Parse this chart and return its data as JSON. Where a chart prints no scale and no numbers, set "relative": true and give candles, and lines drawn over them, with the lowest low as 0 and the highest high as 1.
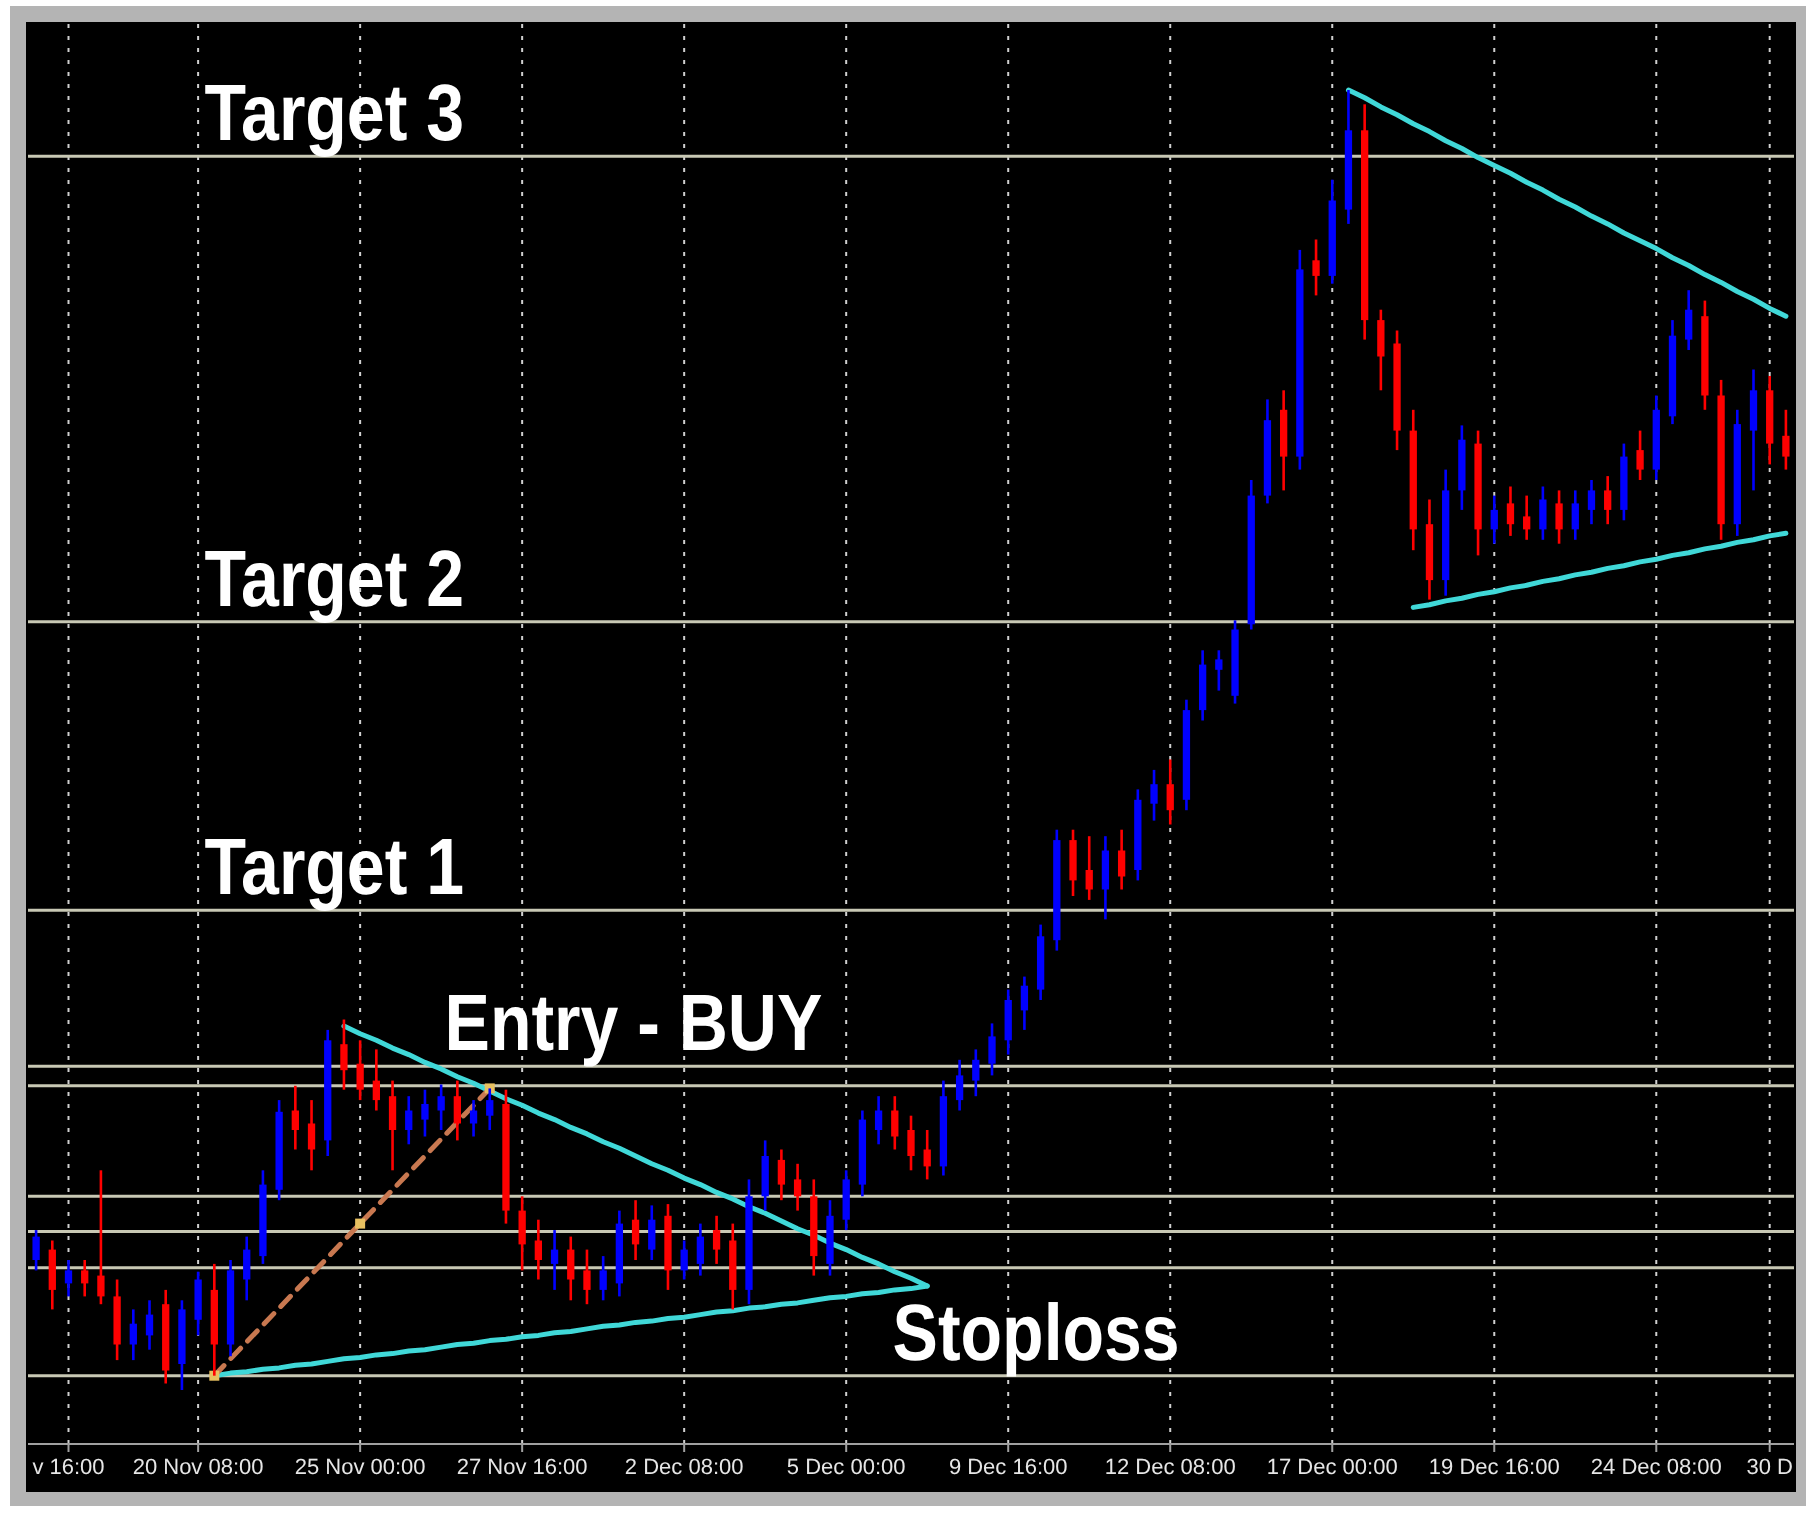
{
  "chart_data": {
    "type": "candlestick",
    "relative": true,
    "grid": "x",
    "categories": [
      null,
      null,
      "v 16:00",
      null,
      null,
      null,
      null,
      null,
      null,
      null,
      "20 Nov 08:00",
      null,
      null,
      null,
      null,
      null,
      null,
      null,
      null,
      null,
      "25 Nov 00:00",
      null,
      null,
      null,
      null,
      null,
      null,
      null,
      null,
      null,
      "27 Nov 16:00",
      null,
      null,
      null,
      null,
      null,
      null,
      null,
      null,
      null,
      "2 Dec 08:00",
      null,
      null,
      null,
      null,
      null,
      null,
      null,
      null,
      null,
      "5 Dec 00:00",
      null,
      null,
      null,
      null,
      null,
      null,
      null,
      null,
      null,
      "9 Dec 16:00",
      null,
      null,
      null,
      null,
      null,
      null,
      null,
      null,
      null,
      "12 Dec 08:00",
      null,
      null,
      null,
      null,
      null,
      null,
      null,
      null,
      null,
      "17 Dec 00:00",
      null,
      null,
      null,
      null,
      null,
      null,
      null,
      null,
      null,
      "19 Dec 16:00",
      null,
      null,
      null,
      null,
      null,
      null,
      null,
      null,
      null,
      "24 Dec 08:00",
      null,
      null,
      null,
      null,
      null,
      null,
      "30 D",
      null
    ],
    "ohlc": [
      [
        0.1,
        0.123,
        0.092,
        0.118
      ],
      [
        0.108,
        0.115,
        0.062,
        0.077
      ],
      [
        0.082,
        0.1,
        0.072,
        0.092
      ],
      [
        0.092,
        0.1,
        0.072,
        0.082
      ],
      [
        0.088,
        0.169,
        0.066,
        0.072
      ],
      [
        0.072,
        0.085,
        0.023,
        0.035
      ],
      [
        0.035,
        0.062,
        0.023,
        0.051
      ],
      [
        0.042,
        0.069,
        0.031,
        0.058
      ],
      [
        0.066,
        0.077,
        0.005,
        0.015
      ],
      [
        0.02,
        0.069,
        0,
        0.062
      ],
      [
        0.054,
        0.091,
        0.042,
        0.085
      ],
      [
        0.077,
        0.097,
        0.011,
        0.035
      ],
      [
        0.035,
        0.1,
        0.026,
        0.092
      ],
      [
        0.085,
        0.118,
        0.069,
        0.108
      ],
      [
        0.103,
        0.169,
        0.097,
        0.158
      ],
      [
        0.154,
        0.223,
        0.146,
        0.214
      ],
      [
        0.215,
        0.234,
        0.185,
        0.2
      ],
      [
        0.205,
        0.223,
        0.169,
        0.185
      ],
      [
        0.192,
        0.277,
        0.18,
        0.269
      ],
      [
        0.266,
        0.285,
        0.231,
        0.246
      ],
      [
        0.251,
        0.269,
        0.223,
        0.231
      ],
      [
        0.238,
        0.262,
        0.215,
        0.223
      ],
      [
        0.226,
        0.238,
        0.169,
        0.2
      ],
      [
        0.2,
        0.226,
        0.189,
        0.215
      ],
      [
        0.208,
        0.231,
        0.195,
        0.22
      ],
      [
        0.215,
        0.235,
        0.2,
        0.226
      ],
      [
        0.226,
        0.238,
        0.192,
        0.205
      ],
      [
        0.205,
        0.223,
        0.195,
        0.215
      ],
      [
        0.211,
        0.232,
        0.2,
        0.223
      ],
      [
        0.22,
        0.231,
        0.128,
        0.138
      ],
      [
        0.138,
        0.149,
        0.092,
        0.112
      ],
      [
        0.115,
        0.131,
        0.085,
        0.1
      ],
      [
        0.097,
        0.123,
        0.077,
        0.108
      ],
      [
        0.108,
        0.118,
        0.069,
        0.085
      ],
      [
        0.092,
        0.108,
        0.066,
        0.077
      ],
      [
        0.077,
        0.103,
        0.069,
        0.092
      ],
      [
        0.082,
        0.138,
        0.072,
        0.128
      ],
      [
        0.131,
        0.146,
        0.1,
        0.112
      ],
      [
        0.108,
        0.142,
        0.1,
        0.131
      ],
      [
        0.134,
        0.143,
        0.077,
        0.092
      ],
      [
        0.092,
        0.115,
        0.085,
        0.108
      ],
      [
        0.097,
        0.128,
        0.088,
        0.118
      ],
      [
        0.123,
        0.134,
        0.097,
        0.108
      ],
      [
        0.115,
        0.128,
        0.062,
        0.077
      ],
      [
        0.077,
        0.162,
        0.066,
        0.149
      ],
      [
        0.149,
        0.192,
        0.138,
        0.18
      ],
      [
        0.177,
        0.185,
        0.146,
        0.158
      ],
      [
        0.162,
        0.174,
        0.138,
        0.149
      ],
      [
        0.149,
        0.162,
        0.088,
        0.103
      ],
      [
        0.097,
        0.146,
        0.088,
        0.134
      ],
      [
        0.131,
        0.169,
        0.123,
        0.162
      ],
      [
        0.158,
        0.215,
        0.149,
        0.208
      ],
      [
        0.2,
        0.226,
        0.189,
        0.215
      ],
      [
        0.215,
        0.226,
        0.185,
        0.195
      ],
      [
        0.2,
        0.211,
        0.169,
        0.18
      ],
      [
        0.185,
        0.2,
        0.162,
        0.172
      ],
      [
        0.172,
        0.238,
        0.165,
        0.226
      ],
      [
        0.223,
        0.254,
        0.215,
        0.242
      ],
      [
        0.238,
        0.262,
        0.226,
        0.254
      ],
      [
        0.251,
        0.282,
        0.242,
        0.272
      ],
      [
        0.269,
        0.308,
        0.258,
        0.3
      ],
      [
        0.292,
        0.318,
        0.277,
        0.311
      ],
      [
        0.308,
        0.358,
        0.3,
        0.349
      ],
      [
        0.346,
        0.431,
        0.338,
        0.423
      ],
      [
        0.423,
        0.431,
        0.38,
        0.392
      ],
      [
        0.4,
        0.426,
        0.377,
        0.385
      ],
      [
        0.385,
        0.426,
        0.362,
        0.415
      ],
      [
        0.415,
        0.431,
        0.385,
        0.395
      ],
      [
        0.4,
        0.462,
        0.392,
        0.454
      ],
      [
        0.451,
        0.477,
        0.438,
        0.466
      ],
      [
        0.466,
        0.485,
        0.435,
        0.446
      ],
      [
        0.454,
        0.531,
        0.446,
        0.523
      ],
      [
        0.523,
        0.569,
        0.515,
        0.558
      ],
      [
        0.554,
        0.569,
        0.538,
        0.562
      ],
      [
        0.534,
        0.592,
        0.528,
        0.585
      ],
      [
        0.589,
        0.7,
        0.585,
        0.688
      ],
      [
        0.688,
        0.762,
        0.682,
        0.746
      ],
      [
        0.754,
        0.769,
        0.692,
        0.718
      ],
      [
        0.718,
        0.877,
        0.708,
        0.862
      ],
      [
        0.869,
        0.885,
        0.842,
        0.857
      ],
      [
        0.857,
        0.931,
        0.851,
        0.915
      ],
      [
        0.908,
        1,
        0.897,
        0.969
      ],
      [
        0.969,
        0.989,
        0.808,
        0.823
      ],
      [
        0.823,
        0.831,
        0.769,
        0.795
      ],
      [
        0.805,
        0.815,
        0.723,
        0.738
      ],
      [
        0.738,
        0.754,
        0.646,
        0.662
      ],
      [
        0.666,
        0.685,
        0.608,
        0.623
      ],
      [
        0.623,
        0.708,
        0.611,
        0.692
      ],
      [
        0.692,
        0.742,
        0.677,
        0.731
      ],
      [
        0.728,
        0.738,
        0.642,
        0.662
      ],
      [
        0.662,
        0.688,
        0.651,
        0.677
      ],
      [
        0.682,
        0.695,
        0.657,
        0.666
      ],
      [
        0.672,
        0.688,
        0.654,
        0.662
      ],
      [
        0.662,
        0.695,
        0.654,
        0.685
      ],
      [
        0.682,
        0.692,
        0.651,
        0.662
      ],
      [
        0.662,
        0.692,
        0.654,
        0.682
      ],
      [
        0.677,
        0.7,
        0.666,
        0.692
      ],
      [
        0.692,
        0.703,
        0.666,
        0.677
      ],
      [
        0.677,
        0.728,
        0.669,
        0.718
      ],
      [
        0.723,
        0.738,
        0.7,
        0.708
      ],
      [
        0.708,
        0.765,
        0.7,
        0.754
      ],
      [
        0.749,
        0.823,
        0.743,
        0.811
      ],
      [
        0.808,
        0.846,
        0.8,
        0.831
      ],
      [
        0.826,
        0.838,
        0.754,
        0.765
      ],
      [
        0.765,
        0.777,
        0.654,
        0.666
      ],
      [
        0.666,
        0.754,
        0.657,
        0.743
      ],
      [
        0.738,
        0.785,
        0.692,
        0.769
      ],
      [
        0.769,
        0.78,
        0.712,
        0.728
      ],
      [
        0.734,
        0.754,
        0.708,
        0.718
      ]
    ],
    "colors": [
      "#0000ff",
      "#ff0000",
      "#0000ff",
      "#ff0000",
      "#ff0000",
      "#ff0000",
      "#0000ff",
      "#0000ff",
      "#ff0000",
      "#0000ff",
      "#0000ff",
      "#ff0000",
      "#0000ff",
      "#0000ff",
      "#0000ff",
      "#0000ff",
      "#ff0000",
      "#ff0000",
      "#0000ff",
      "#ff0000",
      "#ff0000",
      "#ff0000",
      "#ff0000",
      "#0000ff",
      "#0000ff",
      "#0000ff",
      "#ff0000",
      "#0000ff",
      "#0000ff",
      "#ff0000",
      "#ff0000",
      "#ff0000",
      "#0000ff",
      "#ff0000",
      "#ff0000",
      "#0000ff",
      "#0000ff",
      "#ff0000",
      "#0000ff",
      "#ff0000",
      "#0000ff",
      "#0000ff",
      "#ff0000",
      "#ff0000",
      "#0000ff",
      "#0000ff",
      "#ff0000",
      "#ff0000",
      "#ff0000",
      "#0000ff",
      "#0000ff",
      "#0000ff",
      "#0000ff",
      "#ff0000",
      "#ff0000",
      "#ff0000",
      "#0000ff",
      "#0000ff",
      "#0000ff",
      "#0000ff",
      "#0000ff",
      "#0000ff",
      "#0000ff",
      "#0000ff",
      "#ff0000",
      "#ff0000",
      "#0000ff",
      "#ff0000",
      "#0000ff",
      "#0000ff",
      "#ff0000",
      "#0000ff",
      "#0000ff",
      "#0000ff",
      "#0000ff",
      "#0000ff",
      "#0000ff",
      "#ff0000",
      "#0000ff",
      "#ff0000",
      "#0000ff",
      "#0000ff",
      "#ff0000",
      "#ff0000",
      "#ff0000",
      "#ff0000",
      "#ff0000",
      "#0000ff",
      "#0000ff",
      "#ff0000",
      "#0000ff",
      "#ff0000",
      "#ff0000",
      "#0000ff",
      "#ff0000",
      "#0000ff",
      "#0000ff",
      "#ff0000",
      "#0000ff",
      "#ff0000",
      "#0000ff",
      "#0000ff",
      "#0000ff",
      "#ff0000",
      "#ff0000",
      "#0000ff",
      "#0000ff",
      "#ff0000",
      "#ff0000"
    ],
    "series": [
      {
        "type": "line",
        "color": "#40d8d8",
        "values": [
          null,
          null,
          null,
          null,
          null,
          null,
          null,
          null,
          null,
          null,
          null,
          null,
          null,
          null,
          null,
          null,
          null,
          null,
          null,
          0.28,
          0.274,
          0.269,
          0.263,
          0.258,
          0.252,
          0.247,
          0.241,
          0.236,
          0.23,
          0.224,
          0.219,
          0.213,
          0.208,
          0.202,
          0.197,
          0.191,
          0.186,
          0.18,
          0.174,
          0.169,
          0.163,
          0.158,
          0.152,
          0.147,
          0.141,
          0.136,
          0.13,
          0.124,
          0.119,
          0.113,
          0.108,
          0.102,
          0.097,
          0.091,
          0.086,
          0.08,
          null,
          null,
          null,
          null,
          null,
          null,
          null,
          null,
          null,
          null,
          null,
          null,
          null,
          null,
          null,
          null,
          null,
          null,
          null,
          null,
          null,
          null,
          null,
          null,
          null,
          null,
          null,
          null,
          null,
          null,
          null,
          null,
          null,
          null,
          null,
          null,
          null,
          null,
          null,
          null,
          null,
          null,
          null,
          null,
          null,
          null,
          null,
          null,
          null,
          null,
          null,
          null,
          null
        ]
      },
      {
        "type": "line",
        "color": "#40d8d8",
        "values": [
          null,
          null,
          null,
          null,
          null,
          null,
          null,
          null,
          null,
          null,
          null,
          0.011,
          0.013,
          0.014,
          0.016,
          0.017,
          0.019,
          0.02,
          0.022,
          0.024,
          0.025,
          0.027,
          0.028,
          0.03,
          0.031,
          0.033,
          0.035,
          0.036,
          0.038,
          0.039,
          0.041,
          0.042,
          0.044,
          0.045,
          0.047,
          0.049,
          0.05,
          0.052,
          0.053,
          0.055,
          0.056,
          0.058,
          0.06,
          0.061,
          0.063,
          0.064,
          0.066,
          0.067,
          0.069,
          0.071,
          0.072,
          0.074,
          0.075,
          0.077,
          0.078,
          0.08,
          null,
          null,
          null,
          null,
          null,
          null,
          null,
          null,
          null,
          null,
          null,
          null,
          null,
          null,
          null,
          null,
          null,
          null,
          null,
          null,
          null,
          null,
          null,
          null,
          null,
          null,
          null,
          null,
          null,
          null,
          null,
          null,
          null,
          null,
          null,
          null,
          null,
          null,
          null,
          null,
          null,
          null,
          null,
          null,
          null,
          null,
          null,
          null,
          null,
          null,
          null,
          null,
          null
        ]
      },
      {
        "type": "line",
        "color": "#40d8d8",
        "values": [
          null,
          null,
          null,
          null,
          null,
          null,
          null,
          null,
          null,
          null,
          null,
          null,
          null,
          null,
          null,
          null,
          null,
          null,
          null,
          null,
          null,
          null,
          null,
          null,
          null,
          null,
          null,
          null,
          null,
          null,
          null,
          null,
          null,
          null,
          null,
          null,
          null,
          null,
          null,
          null,
          null,
          null,
          null,
          null,
          null,
          null,
          null,
          null,
          null,
          null,
          null,
          null,
          null,
          null,
          null,
          null,
          null,
          null,
          null,
          null,
          null,
          null,
          null,
          null,
          null,
          null,
          null,
          null,
          null,
          null,
          null,
          null,
          null,
          null,
          null,
          null,
          null,
          null,
          null,
          null,
          null,
          1,
          0.994,
          0.987,
          0.981,
          0.974,
          0.968,
          0.961,
          0.955,
          0.948,
          0.942,
          0.936,
          0.929,
          0.923,
          0.916,
          0.91,
          0.903,
          0.897,
          0.89,
          0.884,
          0.878,
          0.871,
          0.865,
          0.858,
          0.852,
          0.845,
          0.839,
          0.832,
          0.826
        ]
      },
      {
        "type": "line",
        "color": "#40d8d8",
        "values": [
          null,
          null,
          null,
          null,
          null,
          null,
          null,
          null,
          null,
          null,
          null,
          null,
          null,
          null,
          null,
          null,
          null,
          null,
          null,
          null,
          null,
          null,
          null,
          null,
          null,
          null,
          null,
          null,
          null,
          null,
          null,
          null,
          null,
          null,
          null,
          null,
          null,
          null,
          null,
          null,
          null,
          null,
          null,
          null,
          null,
          null,
          null,
          null,
          null,
          null,
          null,
          null,
          null,
          null,
          null,
          null,
          null,
          null,
          null,
          null,
          null,
          null,
          null,
          null,
          null,
          null,
          null,
          null,
          null,
          null,
          null,
          null,
          null,
          null,
          null,
          null,
          null,
          null,
          null,
          null,
          null,
          null,
          null,
          null,
          null,
          0.602,
          0.604,
          0.607,
          0.609,
          0.612,
          0.614,
          0.617,
          0.619,
          0.622,
          0.624,
          0.627,
          0.629,
          0.632,
          0.634,
          0.637,
          0.639,
          0.642,
          0.644,
          0.647,
          0.649,
          0.652,
          0.654,
          0.657,
          0.659
        ]
      },
      {
        "type": "line",
        "color": "#c87850",
        "line_style": "dashed",
        "values": [
          null,
          null,
          null,
          null,
          null,
          null,
          null,
          null,
          null,
          null,
          null,
          0.011,
          0.024,
          0.037,
          0.05,
          0.063,
          0.076,
          0.089,
          0.102,
          0.115,
          0.128,
          0.141,
          0.154,
          0.167,
          0.18,
          0.193,
          0.206,
          0.219,
          0.232,
          null,
          null,
          null,
          null,
          null,
          null,
          null,
          null,
          null,
          null,
          null,
          null,
          null,
          null,
          null,
          null,
          null,
          null,
          null,
          null,
          null,
          null,
          null,
          null,
          null,
          null,
          null,
          null,
          null,
          null,
          null,
          null,
          null,
          null,
          null,
          null,
          null,
          null,
          null,
          null,
          null,
          null,
          null,
          null,
          null,
          null,
          null,
          null,
          null,
          null,
          null,
          null,
          null,
          null,
          null,
          null,
          null,
          null,
          null,
          null,
          null,
          null,
          null,
          null,
          null,
          null,
          null,
          null,
          null,
          null,
          null,
          null,
          null,
          null,
          null,
          null,
          null,
          null,
          null,
          null
        ]
      },
      {
        "type": "scatter",
        "color": "#e8c060",
        "marker": "square",
        "values": [
          null,
          null,
          null,
          null,
          null,
          null,
          null,
          null,
          null,
          null,
          null,
          0.011,
          null,
          null,
          null,
          null,
          null,
          null,
          null,
          null,
          0.128,
          null,
          null,
          null,
          null,
          null,
          null,
          null,
          0.232,
          null,
          null,
          null,
          null,
          null,
          null,
          null,
          null,
          null,
          null,
          null,
          null,
          null,
          null,
          null,
          null,
          null,
          null,
          null,
          null,
          null,
          null,
          null,
          null,
          null,
          null,
          null,
          null,
          null,
          null,
          null,
          null,
          null,
          null,
          null,
          null,
          null,
          null,
          null,
          null,
          null,
          null,
          null,
          null,
          null,
          null,
          null,
          null,
          null,
          null,
          null,
          null,
          null,
          null,
          null,
          null,
          null,
          null,
          null,
          null,
          null,
          null,
          null,
          null,
          null,
          null,
          null,
          null,
          null,
          null,
          null,
          null,
          null,
          null,
          null,
          null,
          null,
          null,
          null,
          null
        ]
      }
    ],
    "ref_lines": [
      {
        "axis": "y",
        "value": 0.949,
        "label": "Target 3",
        "color": "#c8c8b4"
      },
      {
        "axis": "y",
        "value": 0.591,
        "label": "Target 2",
        "color": "#c8c8b4"
      },
      {
        "axis": "y",
        "value": 0.369,
        "label": "Target 1",
        "color": "#c8c8b4"
      },
      {
        "axis": "y",
        "value": 0.249,
        "label": "Entry - BUY",
        "color": "#c8c8b4"
      },
      {
        "axis": "y",
        "value": 0.234,
        "color": "#c8c8b4"
      },
      {
        "axis": "y",
        "value": 0.149,
        "color": "#c8c8b4"
      },
      {
        "axis": "y",
        "value": 0.122,
        "color": "#c8c8b4"
      },
      {
        "axis": "y",
        "value": 0.094,
        "color": "#c8c8b4"
      },
      {
        "axis": "y",
        "value": 0.011,
        "label": "Stoploss",
        "color": "#c8c8b4"
      }
    ]
  }
}
